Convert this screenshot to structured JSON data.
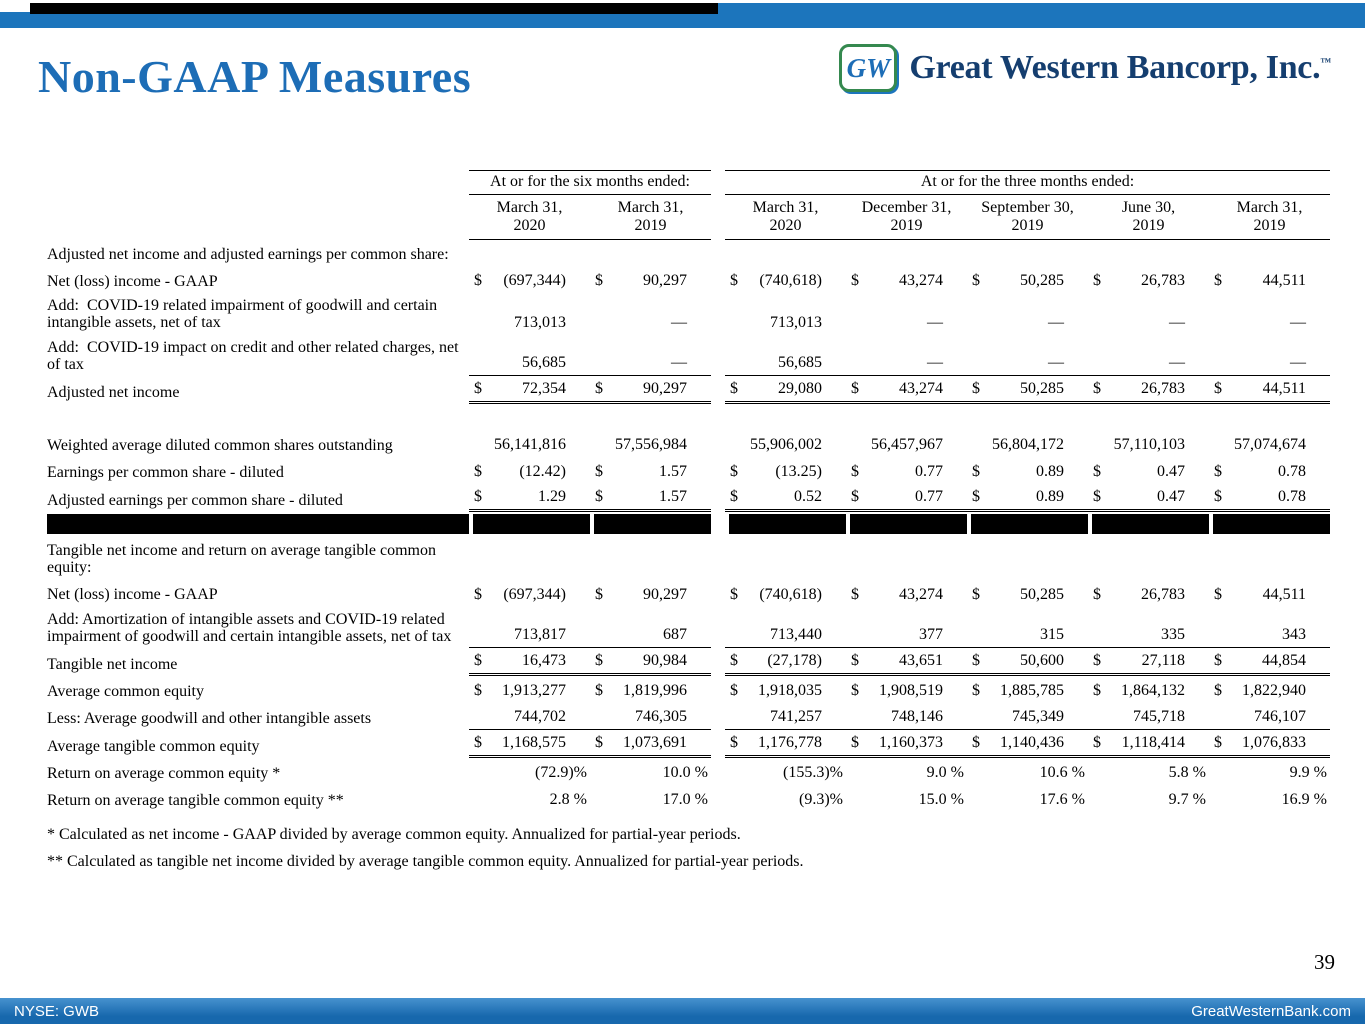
{
  "slide": {
    "title": "Non-GAAP Measures",
    "page_number": "39"
  },
  "logo": {
    "monogram": "GW",
    "company": "Great Western Bancorp, Inc.",
    "trademark": "™"
  },
  "footer": {
    "ticker": "NYSE: GWB",
    "website": "GreatWesternBank.com"
  },
  "table": {
    "group_headers": [
      {
        "label": "At or for the six months ended:",
        "columns": 2
      },
      {
        "label": "At or for the three months ended:",
        "columns": 5
      }
    ],
    "column_headers": [
      "March 31,\n2020",
      "March 31,\n2019",
      "March 31,\n2020",
      "December 31,\n2019",
      "September 30,\n2019",
      "June 30,\n2019",
      "March 31,\n2019"
    ],
    "rows": [
      {
        "type": "section",
        "label": "Adjusted net income and adjusted earnings per common share:"
      },
      {
        "type": "data",
        "label": "Net (loss) income - GAAP",
        "dollar": true,
        "values": [
          "(697,344)",
          "90,297",
          "(740,618)",
          "43,274",
          "50,285",
          "26,783",
          "44,511"
        ]
      },
      {
        "type": "data",
        "label": "Add:  COVID-19 related impairment of goodwill and certain intangible assets, net of tax",
        "dollar": false,
        "values": [
          "713,013",
          "—",
          "713,013",
          "—",
          "—",
          "—",
          "—"
        ]
      },
      {
        "type": "data",
        "label": "Add:  COVID-19 impact on credit and other related charges, net of tax",
        "dollar": false,
        "values": [
          "56,685",
          "—",
          "56,685",
          "—",
          "—",
          "—",
          "—"
        ],
        "underline": "single"
      },
      {
        "type": "data",
        "label": "Adjusted net income",
        "dollar": true,
        "values": [
          "72,354",
          "90,297",
          "29,080",
          "43,274",
          "50,285",
          "26,783",
          "44,511"
        ],
        "underline": "double"
      },
      {
        "type": "spacer"
      },
      {
        "type": "data",
        "label": "Weighted average diluted common shares outstanding",
        "dollar": false,
        "values": [
          "56,141,816",
          "57,556,984",
          "55,906,002",
          "56,457,967",
          "56,804,172",
          "57,110,103",
          "57,074,674"
        ]
      },
      {
        "type": "data",
        "label": "Earnings per common share - diluted",
        "dollar": true,
        "values": [
          "(12.42)",
          "1.57",
          "(13.25)",
          "0.77",
          "0.89",
          "0.47",
          "0.78"
        ]
      },
      {
        "type": "data",
        "label": "Adjusted earnings per common share - diluted",
        "dollar": true,
        "values": [
          "1.29",
          "1.57",
          "0.52",
          "0.77",
          "0.89",
          "0.47",
          "0.78"
        ],
        "underline": "double"
      },
      {
        "type": "divider"
      },
      {
        "type": "section",
        "label": "Tangible net income and return on average tangible common equity:"
      },
      {
        "type": "data",
        "label": "Net (loss) income - GAAP",
        "dollar": true,
        "values": [
          "(697,344)",
          "90,297",
          "(740,618)",
          "43,274",
          "50,285",
          "26,783",
          "44,511"
        ]
      },
      {
        "type": "data",
        "label": "Add: Amortization of intangible assets and COVID-19 related impairment of goodwill and certain intangible assets, net of tax",
        "dollar": false,
        "values": [
          "713,817",
          "687",
          "713,440",
          "377",
          "315",
          "335",
          "343"
        ],
        "underline": "single"
      },
      {
        "type": "data",
        "label": "Tangible net income",
        "dollar": true,
        "values": [
          "16,473",
          "90,984",
          "(27,178)",
          "43,651",
          "50,600",
          "27,118",
          "44,854"
        ],
        "underline": "double"
      },
      {
        "type": "data",
        "label": "Average common equity",
        "dollar": true,
        "values": [
          "1,913,277",
          "1,819,996",
          "1,918,035",
          "1,908,519",
          "1,885,785",
          "1,864,132",
          "1,822,940"
        ]
      },
      {
        "type": "data",
        "label": "Less: Average goodwill and other intangible assets",
        "dollar": false,
        "values": [
          "744,702",
          "746,305",
          "741,257",
          "748,146",
          "745,349",
          "745,718",
          "746,107"
        ],
        "underline": "single"
      },
      {
        "type": "data",
        "label": "Average tangible common equity",
        "dollar": true,
        "values": [
          "1,168,575",
          "1,073,691",
          "1,176,778",
          "1,160,373",
          "1,140,436",
          "1,118,414",
          "1,076,833"
        ],
        "underline": "double"
      },
      {
        "type": "data",
        "label": "Return on average common equity *",
        "dollar": false,
        "values": [
          "(72.9)%",
          "10.0 %",
          "(155.3)%",
          "9.0 %",
          "10.6 %",
          "5.8 %",
          "9.9 %"
        ]
      },
      {
        "type": "data",
        "label": "Return on average tangible common equity **",
        "dollar": false,
        "values": [
          "2.8 %",
          "17.0 %",
          "(9.3)%",
          "15.0 %",
          "17.6 %",
          "9.7 %",
          "16.9 %"
        ]
      }
    ]
  },
  "footnotes": [
    "* Calculated as net income - GAAP divided by average common equity. Annualized for partial-year periods.",
    "** Calculated as tangible net income divided by average tangible common equity. Annualized for partial-year periods."
  ]
}
